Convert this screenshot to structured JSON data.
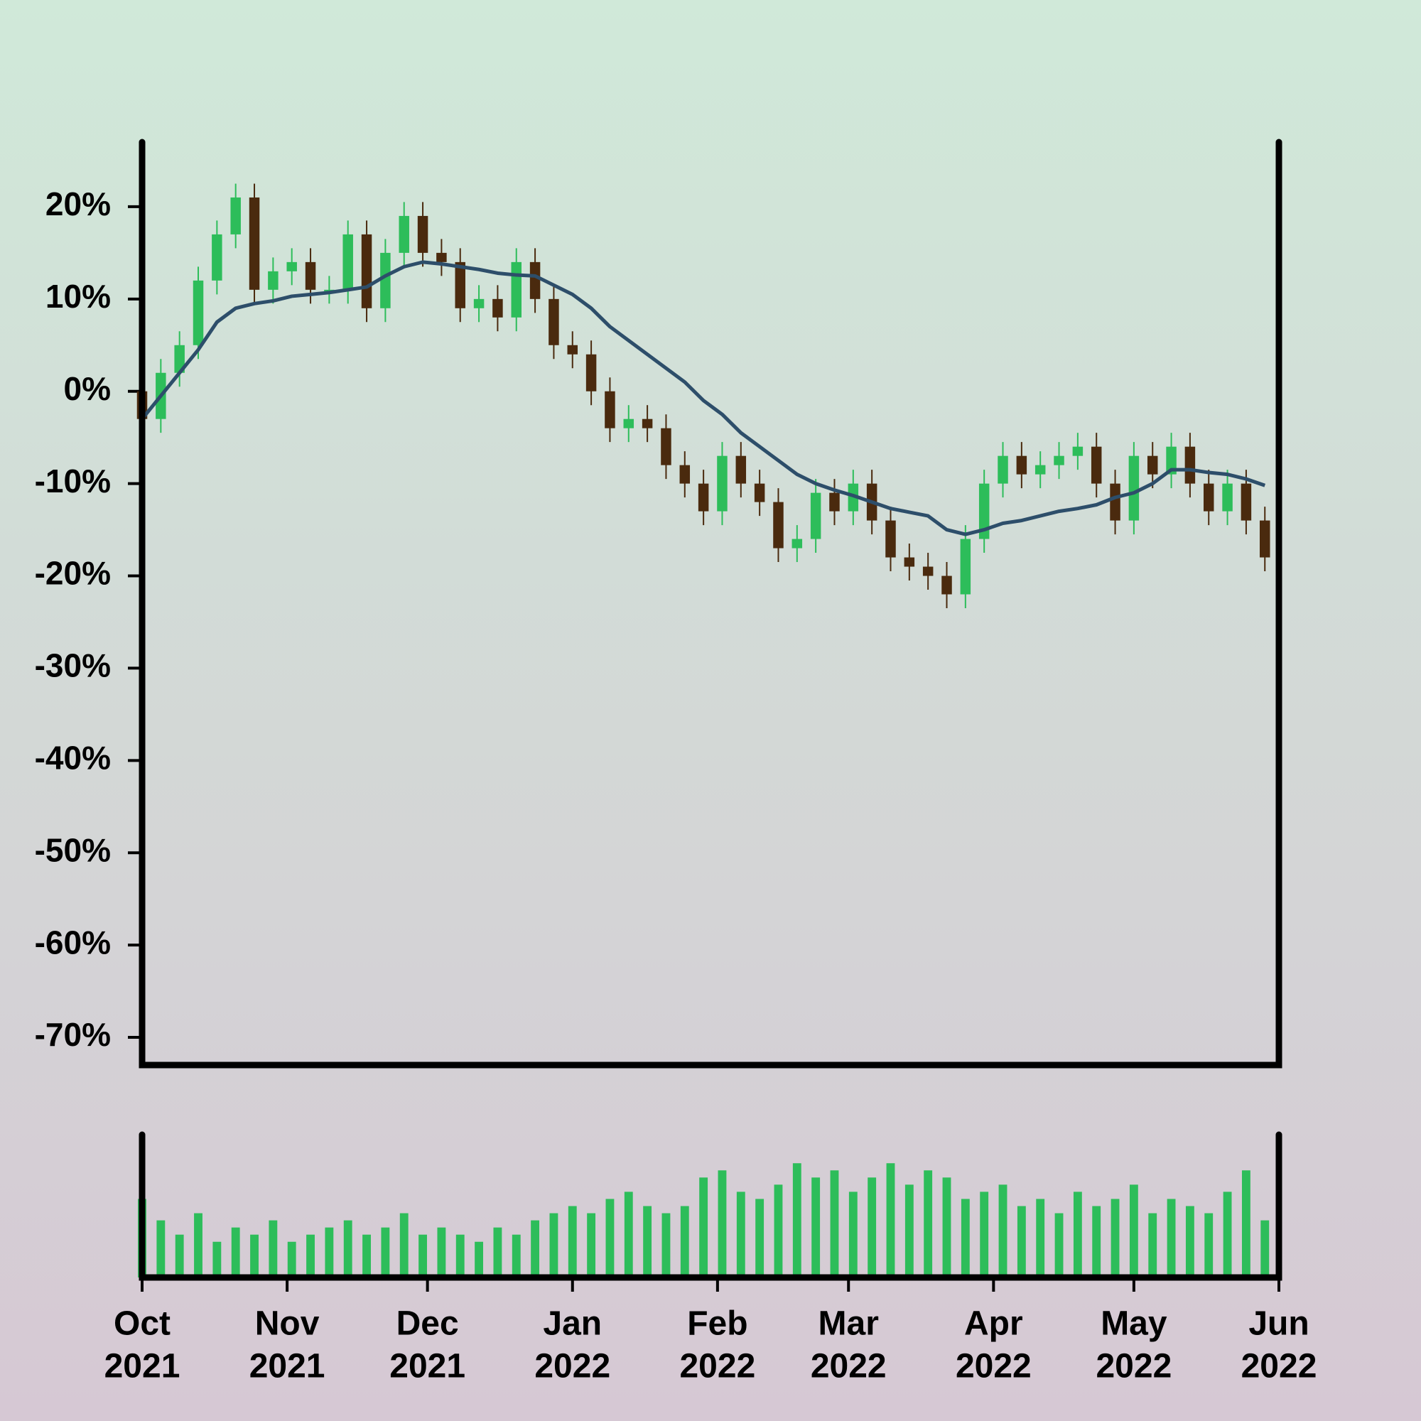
{
  "chart_data": [
    {
      "type": "candlestick",
      "x": [
        0,
        4,
        8,
        12,
        16,
        20,
        24,
        28,
        32,
        36,
        40,
        44,
        48,
        52,
        56,
        60,
        64,
        68,
        72,
        76,
        80,
        84,
        88,
        92,
        96,
        100,
        104,
        108,
        112,
        116,
        120,
        124,
        128,
        132,
        136,
        140,
        144,
        148,
        152,
        156,
        160,
        164,
        168,
        172,
        176,
        180,
        184,
        188,
        192,
        196,
        200,
        204,
        208,
        212,
        216,
        220,
        224,
        228,
        232,
        236,
        240
      ],
      "open": [
        0,
        -3,
        2,
        5,
        12,
        17,
        21,
        11,
        13,
        14,
        11,
        11,
        17,
        9,
        15,
        19,
        15,
        14,
        9,
        10,
        8,
        14,
        10,
        5,
        4,
        0,
        -4,
        -3,
        -4,
        -8,
        -10,
        -13,
        -7,
        -10,
        -12,
        -17,
        -16,
        -11,
        -13,
        -10,
        -14,
        -18,
        -19,
        -20,
        -22,
        -16,
        -10,
        -7,
        -9,
        -8,
        -7,
        -6,
        -10,
        -14,
        -7,
        -9,
        -6,
        -10,
        -13,
        -10,
        -14
      ],
      "high": [
        1.5,
        3.5,
        6.5,
        13.5,
        18.5,
        22.5,
        22.5,
        14.5,
        15.5,
        15.5,
        12.5,
        18.5,
        18.5,
        16.5,
        20.5,
        20.5,
        16.5,
        15.5,
        11.5,
        11.5,
        15.5,
        15.5,
        11.5,
        6.5,
        5.5,
        1.5,
        -1.5,
        -1.5,
        -2.5,
        -6.5,
        -8.5,
        -5.5,
        -5.5,
        -8.5,
        -10.5,
        -14.5,
        -9.5,
        -9.5,
        -8.5,
        -8.5,
        -12.5,
        -16.5,
        -17.5,
        -18.5,
        -14.5,
        -8.5,
        -5.5,
        -5.5,
        -6.5,
        -5.5,
        -4.5,
        -4.5,
        -8.5,
        -5.5,
        -5.5,
        -4.5,
        -4.5,
        -8.5,
        -8.5,
        -8.5,
        -12.5
      ],
      "low": [
        -4.5,
        -4.5,
        0.5,
        3.5,
        10.5,
        15.5,
        9.5,
        9.5,
        11.5,
        9.5,
        9.5,
        9.5,
        7.5,
        7.5,
        13.5,
        13.5,
        12.5,
        7.5,
        7.5,
        6.5,
        6.5,
        8.5,
        3.5,
        2.5,
        -1.5,
        -5.5,
        -5.5,
        -5.5,
        -9.5,
        -11.5,
        -14.5,
        -14.5,
        -11.5,
        -13.5,
        -18.5,
        -18.5,
        -17.5,
        -14.5,
        -14.5,
        -15.5,
        -19.5,
        -20.5,
        -21.5,
        -23.5,
        -23.5,
        -17.5,
        -11.5,
        -10.5,
        -10.5,
        -9.5,
        -8.5,
        -11.5,
        -15.5,
        -15.5,
        -10.5,
        -10.5,
        -11.5,
        -14.5,
        -14.5,
        -15.5,
        -19.5
      ],
      "close": [
        -3,
        2,
        5,
        12,
        17,
        21,
        11,
        13,
        14,
        11,
        11,
        17,
        9,
        15,
        19,
        15,
        14,
        9,
        10,
        8,
        14,
        10,
        5,
        4,
        0,
        -4,
        -3,
        -4,
        -8,
        -10,
        -13,
        -7,
        -10,
        -12,
        -17,
        -16,
        -11,
        -13,
        -10,
        -14,
        -18,
        -19,
        -20,
        -22,
        -16,
        -10,
        -7,
        -9,
        -8,
        -7,
        -6,
        -10,
        -14,
        -7,
        -9,
        -6,
        -10,
        -13,
        -10,
        -14,
        -18
      ],
      "up_color": "#2dbd5a",
      "down_color": "#4a2a0e",
      "moving_average": {
        "color": "#2d4e6a",
        "values": [
          -3,
          -0.5,
          2,
          4.5,
          7.5,
          9,
          9.5,
          9.8,
          10.3,
          10.5,
          10.7,
          11,
          11.3,
          12.5,
          13.5,
          14,
          13.8,
          13.5,
          13.2,
          12.8,
          12.6,
          12.5,
          11.5,
          10.5,
          9,
          7,
          5.5,
          4,
          2.5,
          1,
          -1,
          -2.5,
          -4.5,
          -6,
          -7.5,
          -9,
          -10,
          -10.7,
          -11.3,
          -12,
          -12.7,
          -13.1,
          -13.5,
          -15,
          -15.5,
          -15,
          -14.3,
          -14,
          -13.5,
          -13,
          -12.7,
          -12.3,
          -11.5,
          -11,
          -10,
          -8.5,
          -8.5,
          -8.8,
          -9,
          -9.5,
          -10.2
        ]
      },
      "xlim": [
        0,
        243
      ],
      "ylim": [
        -73,
        27
      ],
      "yticks": [
        {
          "value": 20,
          "label": "20%"
        },
        {
          "value": 10,
          "label": "10%"
        },
        {
          "value": 0,
          "label": "0%"
        },
        {
          "value": -10,
          "label": "-10%"
        },
        {
          "value": -20,
          "label": "-20%"
        },
        {
          "value": -30,
          "label": "-30%"
        },
        {
          "value": -40,
          "label": "-40%"
        },
        {
          "value": -50,
          "label": "-50%"
        },
        {
          "value": -60,
          "label": "-60%"
        },
        {
          "value": -70,
          "label": "-70%"
        }
      ]
    },
    {
      "type": "bar",
      "x": [
        0,
        4,
        8,
        12,
        16,
        20,
        24,
        28,
        32,
        36,
        40,
        44,
        48,
        52,
        56,
        60,
        64,
        68,
        72,
        76,
        80,
        84,
        88,
        92,
        96,
        100,
        104,
        108,
        112,
        116,
        120,
        124,
        128,
        132,
        136,
        140,
        144,
        148,
        152,
        156,
        160,
        164,
        168,
        172,
        176,
        180,
        184,
        188,
        192,
        196,
        200,
        204,
        208,
        212,
        216,
        220,
        224,
        228,
        232,
        236,
        240
      ],
      "values": [
        55,
        40,
        30,
        45,
        25,
        35,
        30,
        40,
        25,
        30,
        35,
        40,
        30,
        35,
        45,
        30,
        35,
        30,
        25,
        35,
        30,
        40,
        45,
        50,
        45,
        55,
        60,
        50,
        45,
        50,
        70,
        75,
        60,
        55,
        65,
        80,
        70,
        75,
        60,
        70,
        80,
        65,
        75,
        70,
        55,
        60,
        65,
        50,
        55,
        45,
        60,
        50,
        55,
        65,
        45,
        55,
        50,
        45,
        60,
        75,
        40
      ],
      "color": "#2dbd5a",
      "xlim": [
        0,
        243
      ],
      "ylim": [
        0,
        100
      ],
      "xticks": [
        {
          "value": 0,
          "label": [
            "Oct",
            "2021"
          ]
        },
        {
          "value": 31,
          "label": [
            "Nov",
            "2021"
          ]
        },
        {
          "value": 61,
          "label": [
            "Dec",
            "2021"
          ]
        },
        {
          "value": 92,
          "label": [
            "Jan",
            "2022"
          ]
        },
        {
          "value": 123,
          "label": [
            "Feb",
            "2022"
          ]
        },
        {
          "value": 151,
          "label": [
            "Mar",
            "2022"
          ]
        },
        {
          "value": 182,
          "label": [
            "Apr",
            "2022"
          ]
        },
        {
          "value": 212,
          "label": [
            "May",
            "2022"
          ]
        },
        {
          "value": 243,
          "label": [
            "Jun",
            "2022"
          ]
        }
      ]
    }
  ]
}
